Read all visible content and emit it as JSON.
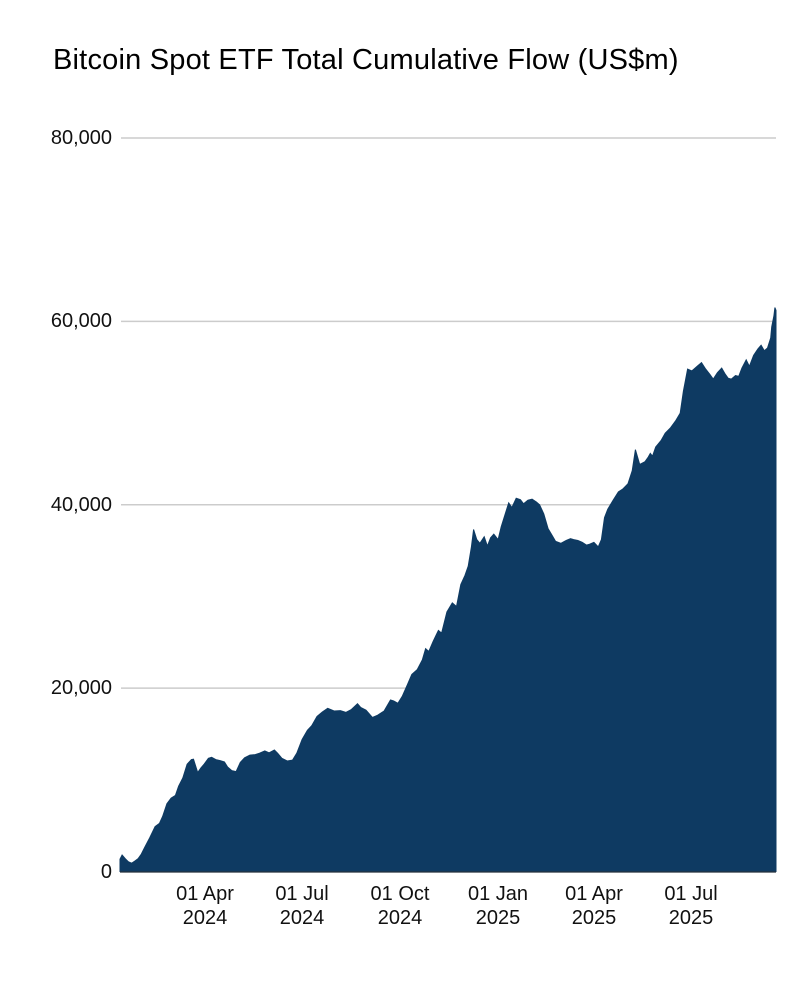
{
  "chart_data": {
    "type": "area",
    "title": "Bitcoin Spot ETF Total Cumulative Flow (US$m)",
    "legend": "none",
    "grid": "horizontal",
    "x_domain": [
      "2024-01-12",
      "2025-09-19"
    ],
    "y_axis": {
      "min": 0,
      "max": 80000,
      "ticks": [
        0,
        20000,
        40000,
        60000,
        80000
      ],
      "tick_labels": [
        "0",
        "20,000",
        "40,000",
        "60,000",
        "80,000"
      ]
    },
    "x_axis": {
      "ticks": [
        {
          "date": "2024-04-01",
          "line1": "01 Apr",
          "line2": "2024"
        },
        {
          "date": "2024-07-01",
          "line1": "01 Jul",
          "line2": "2024"
        },
        {
          "date": "2024-10-01",
          "line1": "01 Oct",
          "line2": "2024"
        },
        {
          "date": "2025-01-01",
          "line1": "01 Jan",
          "line2": "2025"
        },
        {
          "date": "2025-04-01",
          "line1": "01 Apr",
          "line2": "2025"
        },
        {
          "date": "2025-07-01",
          "line1": "01 Jul",
          "line2": "2025"
        }
      ]
    },
    "colors": {
      "area_fill": "#0e3a62",
      "gridline": "#cccccc",
      "baseline": "#26313c",
      "text": "#111111",
      "title_text": "#000000"
    },
    "series": [
      {
        "name": "Total cumulative flow (US$m)",
        "color": "#0e3a62",
        "points": [
          [
            "2024-01-12",
            1350
          ],
          [
            "2024-01-14",
            1800
          ],
          [
            "2024-01-17",
            1400
          ],
          [
            "2024-01-20",
            1050
          ],
          [
            "2024-01-23",
            900
          ],
          [
            "2024-01-26",
            1150
          ],
          [
            "2024-01-29",
            1400
          ],
          [
            "2024-02-01",
            1900
          ],
          [
            "2024-02-04",
            2600
          ],
          [
            "2024-02-09",
            3700
          ],
          [
            "2024-02-14",
            4900
          ],
          [
            "2024-02-18",
            5250
          ],
          [
            "2024-02-21",
            6000
          ],
          [
            "2024-02-25",
            7400
          ],
          [
            "2024-02-29",
            8000
          ],
          [
            "2024-03-04",
            8300
          ],
          [
            "2024-03-07",
            9300
          ],
          [
            "2024-03-11",
            10200
          ],
          [
            "2024-03-15",
            11700
          ],
          [
            "2024-03-19",
            12200
          ],
          [
            "2024-03-21",
            12250
          ],
          [
            "2024-03-25",
            10800
          ],
          [
            "2024-03-28",
            11300
          ],
          [
            "2024-03-31",
            11700
          ],
          [
            "2024-04-04",
            12350
          ],
          [
            "2024-04-07",
            12450
          ],
          [
            "2024-04-11",
            12200
          ],
          [
            "2024-04-15",
            12100
          ],
          [
            "2024-04-19",
            11950
          ],
          [
            "2024-04-22",
            11400
          ],
          [
            "2024-04-26",
            11000
          ],
          [
            "2024-04-30",
            10900
          ],
          [
            "2024-05-04",
            11900
          ],
          [
            "2024-05-08",
            12400
          ],
          [
            "2024-05-13",
            12700
          ],
          [
            "2024-05-18",
            12750
          ],
          [
            "2024-05-22",
            12900
          ],
          [
            "2024-05-27",
            13150
          ],
          [
            "2024-05-31",
            12950
          ],
          [
            "2024-06-05",
            13250
          ],
          [
            "2024-06-08",
            12900
          ],
          [
            "2024-06-12",
            12350
          ],
          [
            "2024-06-17",
            12050
          ],
          [
            "2024-06-22",
            12150
          ],
          [
            "2024-06-26",
            12900
          ],
          [
            "2024-07-01",
            14400
          ],
          [
            "2024-07-06",
            15400
          ],
          [
            "2024-07-10",
            15900
          ],
          [
            "2024-07-15",
            16900
          ],
          [
            "2024-07-20",
            17400
          ],
          [
            "2024-07-25",
            17800
          ],
          [
            "2024-07-31",
            17500
          ],
          [
            "2024-08-06",
            17550
          ],
          [
            "2024-08-11",
            17350
          ],
          [
            "2024-08-16",
            17650
          ],
          [
            "2024-08-22",
            18300
          ],
          [
            "2024-08-25",
            17900
          ],
          [
            "2024-08-30",
            17600
          ],
          [
            "2024-09-05",
            16800
          ],
          [
            "2024-09-10",
            17050
          ],
          [
            "2024-09-16",
            17500
          ],
          [
            "2024-09-22",
            18700
          ],
          [
            "2024-09-25",
            18600
          ],
          [
            "2024-09-29",
            18350
          ],
          [
            "2024-10-03",
            19100
          ],
          [
            "2024-10-08",
            20400
          ],
          [
            "2024-10-12",
            21500
          ],
          [
            "2024-10-17",
            22000
          ],
          [
            "2024-10-22",
            23100
          ],
          [
            "2024-10-25",
            24300
          ],
          [
            "2024-10-28",
            24000
          ],
          [
            "2024-11-01",
            25100
          ],
          [
            "2024-11-06",
            26300
          ],
          [
            "2024-11-09",
            26000
          ],
          [
            "2024-11-14",
            28300
          ],
          [
            "2024-11-19",
            29300
          ],
          [
            "2024-11-23",
            28900
          ],
          [
            "2024-11-27",
            31300
          ],
          [
            "2024-12-01",
            32300
          ],
          [
            "2024-12-04",
            33300
          ],
          [
            "2024-12-07",
            35400
          ],
          [
            "2024-12-09",
            37300
          ],
          [
            "2024-12-12",
            36200
          ],
          [
            "2024-12-15",
            35800
          ],
          [
            "2024-12-19",
            36500
          ],
          [
            "2024-12-22",
            35500
          ],
          [
            "2024-12-25",
            36400
          ],
          [
            "2024-12-28",
            36800
          ],
          [
            "2025-01-01",
            36200
          ],
          [
            "2025-01-04",
            37600
          ],
          [
            "2025-01-08",
            39100
          ],
          [
            "2025-01-11",
            40200
          ],
          [
            "2025-01-14",
            39700
          ],
          [
            "2025-01-18",
            40700
          ],
          [
            "2025-01-22",
            40550
          ],
          [
            "2025-01-25",
            40100
          ],
          [
            "2025-01-29",
            40500
          ],
          [
            "2025-02-02",
            40600
          ],
          [
            "2025-02-06",
            40300
          ],
          [
            "2025-02-09",
            40000
          ],
          [
            "2025-02-13",
            39000
          ],
          [
            "2025-02-17",
            37400
          ],
          [
            "2025-02-21",
            36600
          ],
          [
            "2025-02-24",
            36000
          ],
          [
            "2025-03-01",
            35800
          ],
          [
            "2025-03-06",
            36100
          ],
          [
            "2025-03-10",
            36300
          ],
          [
            "2025-03-13",
            36200
          ],
          [
            "2025-03-17",
            36100
          ],
          [
            "2025-03-21",
            35900
          ],
          [
            "2025-03-25",
            35600
          ],
          [
            "2025-03-28",
            35700
          ],
          [
            "2025-04-01",
            35900
          ],
          [
            "2025-04-05",
            35400
          ],
          [
            "2025-04-08",
            36200
          ],
          [
            "2025-04-11",
            38600
          ],
          [
            "2025-04-14",
            39500
          ],
          [
            "2025-04-19",
            40500
          ],
          [
            "2025-04-24",
            41400
          ],
          [
            "2025-04-28",
            41700
          ],
          [
            "2025-05-03",
            42300
          ],
          [
            "2025-05-07",
            43700
          ],
          [
            "2025-05-10",
            46000
          ],
          [
            "2025-05-14",
            44400
          ],
          [
            "2025-05-19",
            44700
          ],
          [
            "2025-05-22",
            45200
          ],
          [
            "2025-05-24",
            45600
          ],
          [
            "2025-05-26",
            45300
          ],
          [
            "2025-05-29",
            46300
          ],
          [
            "2025-06-03",
            47000
          ],
          [
            "2025-06-07",
            47800
          ],
          [
            "2025-06-12",
            48400
          ],
          [
            "2025-06-17",
            49200
          ],
          [
            "2025-06-21",
            50000
          ],
          [
            "2025-06-24",
            52400
          ],
          [
            "2025-06-28",
            54800
          ],
          [
            "2025-07-02",
            54600
          ],
          [
            "2025-07-07",
            55100
          ],
          [
            "2025-07-11",
            55500
          ],
          [
            "2025-07-15",
            54800
          ],
          [
            "2025-07-19",
            54200
          ],
          [
            "2025-07-22",
            53700
          ],
          [
            "2025-07-26",
            54400
          ],
          [
            "2025-07-30",
            54900
          ],
          [
            "2025-08-02",
            54300
          ],
          [
            "2025-08-05",
            53800
          ],
          [
            "2025-08-08",
            53700
          ],
          [
            "2025-08-12",
            54100
          ],
          [
            "2025-08-15",
            54000
          ],
          [
            "2025-08-18",
            54900
          ],
          [
            "2025-08-22",
            55800
          ],
          [
            "2025-08-25",
            55100
          ],
          [
            "2025-08-29",
            56300
          ],
          [
            "2025-09-02",
            57000
          ],
          [
            "2025-09-05",
            57400
          ],
          [
            "2025-09-08",
            56800
          ],
          [
            "2025-09-11",
            57100
          ],
          [
            "2025-09-14",
            58200
          ],
          [
            "2025-09-15",
            59400
          ],
          [
            "2025-09-17",
            60600
          ],
          [
            "2025-09-18",
            61500
          ],
          [
            "2025-09-19",
            61200
          ]
        ]
      }
    ]
  }
}
